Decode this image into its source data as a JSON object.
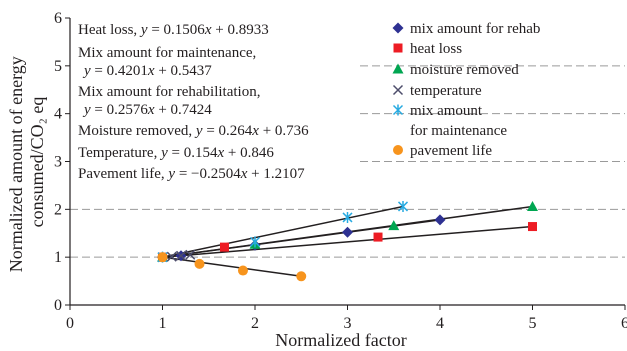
{
  "chart_data": {
    "type": "scatter",
    "title": "",
    "xlabel": "Normalized factor",
    "ylabel_lines": [
      "Normalized amount of energy",
      "consumed/CO₂ eq"
    ],
    "xlim": [
      0,
      6
    ],
    "ylim": [
      0,
      6
    ],
    "x_ticks": [
      "0",
      "1",
      "2",
      "3",
      "4",
      "5",
      "6"
    ],
    "y_ticks": [
      "0",
      "1",
      "2",
      "3",
      "4",
      "5",
      "6"
    ],
    "grid": "horizontal dashed at y = 1, 2, 3, 4, 5",
    "legend_position": "top-right",
    "series": [
      {
        "name": "mix amount for rehab",
        "marker": "diamond",
        "color": "#2e3192",
        "points": [
          [
            1,
            1
          ],
          [
            1.2,
            1.03
          ],
          [
            2,
            1.25
          ],
          [
            3,
            1.52
          ],
          [
            4,
            1.78
          ]
        ]
      },
      {
        "name": "heat loss",
        "marker": "square",
        "color": "#ed1c24",
        "points": [
          [
            1,
            1
          ],
          [
            1.67,
            1.21
          ],
          [
            3.33,
            1.42
          ],
          [
            5,
            1.64
          ]
        ]
      },
      {
        "name": "moisture removed",
        "marker": "triangle",
        "color": "#00a651",
        "points": [
          [
            1,
            1
          ],
          [
            2,
            1.27
          ],
          [
            3.5,
            1.66
          ],
          [
            5,
            2.06
          ]
        ]
      },
      {
        "name": "temperature",
        "marker": "x",
        "color": "#4d4d6b",
        "points": [
          [
            1,
            1
          ],
          [
            1.1,
            1.01
          ],
          [
            1.2,
            1.03
          ],
          [
            1.3,
            1.05
          ]
        ]
      },
      {
        "name": "mix amount\nfor maintenance",
        "legend_lines": [
          "mix amount",
          "for maintenance"
        ],
        "marker": "asterisk",
        "color": "#27aae1",
        "points": [
          [
            1,
            1
          ],
          [
            2,
            1.32
          ],
          [
            3,
            1.83
          ],
          [
            3.6,
            2.06
          ]
        ]
      },
      {
        "name": "pavement life",
        "marker": "circle",
        "color": "#f7941d",
        "points": [
          [
            1,
            1
          ],
          [
            1.4,
            0.86
          ],
          [
            1.87,
            0.72
          ],
          [
            2.5,
            0.6
          ]
        ]
      }
    ],
    "trendlines": [
      {
        "series": "heat loss",
        "x_range": [
          1,
          5
        ]
      },
      {
        "series": "mix amount for rehab",
        "x_range": [
          1,
          4
        ]
      },
      {
        "series": "moisture removed",
        "x_range": [
          1,
          5
        ]
      },
      {
        "series": "mix amount\nfor maintenance",
        "x_range": [
          1,
          3.6
        ]
      },
      {
        "series": "temperature",
        "x_range": [
          1,
          1.3
        ]
      },
      {
        "series": "pavement life",
        "x_range": [
          1,
          2.5
        ]
      }
    ],
    "equations": [
      "Heat loss, y = 0.1506x + 0.8933",
      "Mix amount for maintenance,",
      "y = 0.4201x + 0.5437",
      "Mix amount for rehabilitation,",
      "y = 0.2576x + 0.7424",
      "Moisture removed, y = 0.264x + 0.736",
      "Temperature, y = 0.154x + 0.846",
      "Pavement life, y = −0.2504x + 1.2107"
    ]
  }
}
